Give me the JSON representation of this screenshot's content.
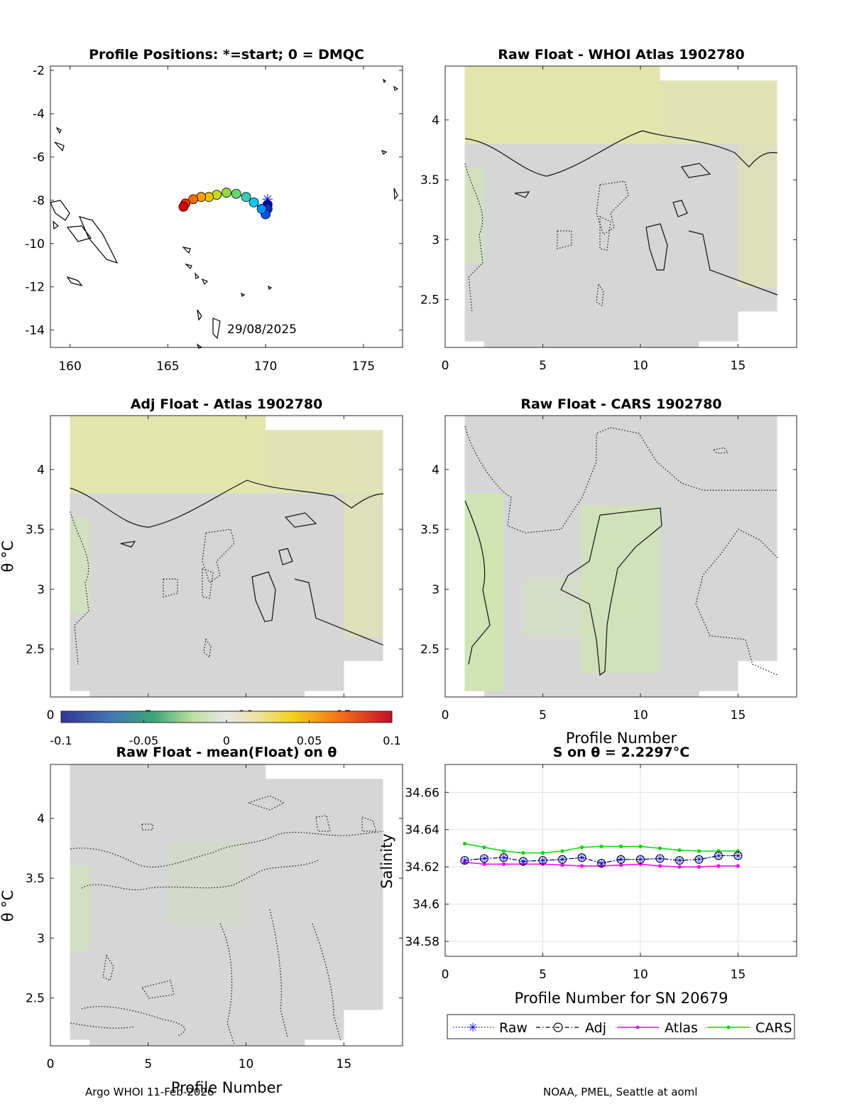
{
  "panels": {
    "map": {
      "title": "Profile Positions: *=start; 0 = DMQC",
      "date_label": "29/08/2025",
      "xticks": [
        "160",
        "165",
        "170",
        "175"
      ],
      "yticks": [
        "-2",
        "-4",
        "-6",
        "-8",
        "-10",
        "-12",
        "-14"
      ]
    },
    "whoi": {
      "title": "Raw Float - WHOI Atlas  1902780"
    },
    "adj": {
      "title": "Adj Float - Atlas  1902780",
      "ylabel": "θ °C"
    },
    "cars": {
      "title": "Raw Float - CARS  1902780",
      "xlabel": "Profile Number"
    },
    "mean": {
      "title": "Raw Float - mean(Float) on θ",
      "ylabel": "θ °C",
      "xlabel": "Profile Number"
    },
    "sal": {
      "title": "S on θ = 2.2297°C",
      "ylabel": "Salinity",
      "xlabel": "Profile Number for SN 20679"
    },
    "theta_xticks": [
      "0",
      "5",
      "10",
      "15"
    ],
    "theta_yticks": [
      "2.5",
      "3",
      "3.5",
      "4"
    ]
  },
  "colorbar": {
    "ticks": [
      "-0.1",
      "-0.05",
      "0",
      "0.05",
      "0.1"
    ]
  },
  "legend": {
    "raw": "Raw",
    "adj": "Adj",
    "atlas": "Atlas",
    "cars": "CARS"
  },
  "footer": {
    "left": "Argo WHOI 11-Feb-2026",
    "right": "NOAA, PMEL, Seattle at aoml"
  },
  "colors": {
    "raw": "#0000ff",
    "adj": "#000000",
    "atlas": "#ff00ff",
    "cars": "#00dd00",
    "field_gray": "#d6d6d6",
    "field_yellow": "#e6e8a6",
    "field_green": "#cfe6b0"
  },
  "chart_data": [
    {
      "type": "scatter",
      "title": "Profile Positions: *=start; 0 = DMQC",
      "xlabel": "",
      "ylabel": "",
      "xlim": [
        159,
        177
      ],
      "ylim": [
        -14.8,
        -1.8
      ],
      "positions": {
        "lon": [
          170.1,
          170.1,
          170.0,
          169.8,
          169.4,
          169.0,
          168.5,
          168.0,
          167.5,
          167.1,
          166.7,
          166.3,
          165.9,
          165.8
        ],
        "lat": [
          -8.2,
          -8.4,
          -8.65,
          -8.4,
          -8.1,
          -7.85,
          -7.7,
          -7.65,
          -7.75,
          -7.85,
          -7.85,
          -7.95,
          -8.15,
          -8.3
        ]
      },
      "start": {
        "lon": 170.1,
        "lat": -7.95
      },
      "annotation": "29/08/2025"
    },
    {
      "type": "heatmap",
      "title": "Raw Float - WHOI Atlas  1902780",
      "xlim": [
        0,
        18
      ],
      "ylim": [
        2.1,
        4.45
      ],
      "clim": [
        -0.1,
        0.1
      ]
    },
    {
      "type": "heatmap",
      "title": "Adj Float - Atlas  1902780",
      "ylabel": "θ °C",
      "xlim": [
        0,
        18
      ],
      "ylim": [
        2.1,
        4.45
      ],
      "clim": [
        -0.1,
        0.1
      ]
    },
    {
      "type": "heatmap",
      "title": "Raw Float - CARS  1902780",
      "xlabel": "Profile Number",
      "xlim": [
        0,
        18
      ],
      "ylim": [
        2.1,
        4.45
      ],
      "clim": [
        -0.1,
        0.1
      ]
    },
    {
      "type": "heatmap",
      "title": "Raw Float - mean(Float) on θ",
      "xlabel": "Profile Number",
      "ylabel": "θ °C",
      "xlim": [
        0,
        18
      ],
      "ylim": [
        2.1,
        4.45
      ],
      "clim": [
        -0.1,
        0.1
      ]
    },
    {
      "type": "line",
      "title": "S on θ = 2.2297°C",
      "xlabel": "Profile Number for SN 20679",
      "ylabel": "Salinity",
      "xlim": [
        0,
        18
      ],
      "ylim": [
        34.572,
        34.675
      ],
      "x": [
        1,
        2,
        3,
        4,
        5,
        6,
        7,
        8,
        9,
        10,
        11,
        12,
        13,
        14,
        15
      ],
      "xticks": [
        0,
        5,
        10,
        15
      ],
      "yticks": [
        "34.58",
        "34.6",
        "34.62",
        "34.64",
        "34.66"
      ],
      "ytick_values": [
        34.58,
        34.6,
        34.62,
        34.64,
        34.66
      ],
      "series": [
        {
          "name": "Raw",
          "values": [
            34.6235,
            34.6245,
            34.625,
            34.623,
            34.6235,
            34.624,
            34.625,
            34.622,
            34.624,
            34.624,
            34.6245,
            34.6235,
            34.624,
            34.626,
            34.626
          ]
        },
        {
          "name": "Adj",
          "values": [
            34.6235,
            34.6245,
            34.625,
            34.623,
            34.6235,
            34.624,
            34.625,
            34.622,
            34.624,
            34.624,
            34.6245,
            34.6235,
            34.624,
            34.626,
            34.626
          ]
        },
        {
          "name": "Atlas",
          "values": [
            34.6225,
            34.6215,
            34.6215,
            34.6215,
            34.6215,
            34.621,
            34.6205,
            34.6205,
            34.621,
            34.6215,
            34.6205,
            34.62,
            34.62,
            34.6205,
            34.6205
          ]
        },
        {
          "name": "CARS",
          "values": [
            34.6325,
            34.6305,
            34.6285,
            34.6275,
            34.6275,
            34.6285,
            34.6305,
            34.631,
            34.631,
            34.631,
            34.63,
            34.629,
            34.6285,
            34.6285,
            34.6285
          ]
        }
      ]
    }
  ]
}
